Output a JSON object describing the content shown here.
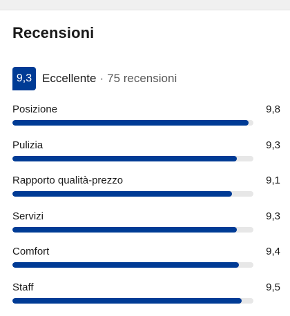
{
  "reviews": {
    "title": "Recensioni",
    "score": "9,3",
    "rating_label": "Eccellente",
    "separator": "·",
    "review_count": "75 recensioni",
    "categories": [
      {
        "label": "Posizione",
        "value": "9,8",
        "level": 0.98
      },
      {
        "label": "Pulizia",
        "value": "9,3",
        "level": 0.93
      },
      {
        "label": "Rapporto qualità-prezzo",
        "value": "9,1",
        "level": 0.91
      },
      {
        "label": "Servizi",
        "value": "9,3",
        "level": 0.93
      },
      {
        "label": "Comfort",
        "value": "9,4",
        "level": 0.94
      },
      {
        "label": "Staff",
        "value": "9,5",
        "level": 0.95
      }
    ]
  },
  "colors": {
    "accent": "#003b95",
    "track": "#e7e7e7"
  }
}
